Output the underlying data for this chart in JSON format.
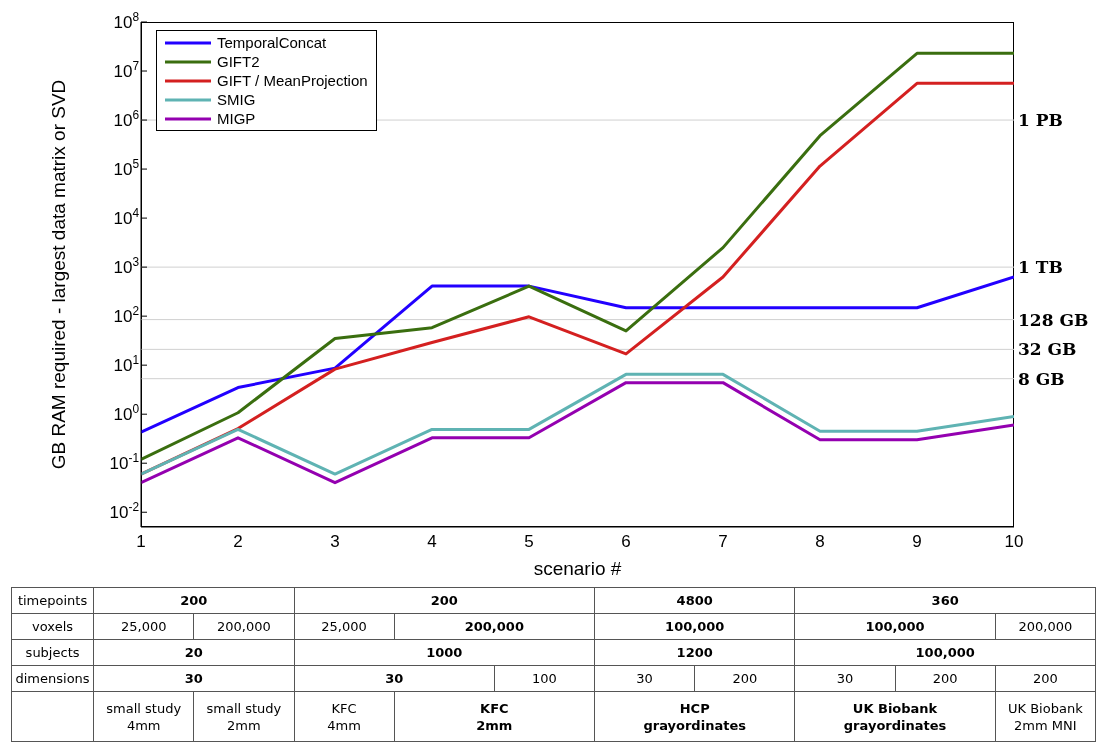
{
  "chart_data": {
    "type": "line",
    "xlabel": "scenario #",
    "ylabel": "GB RAM required - largest data matrix or SVD",
    "x": [
      1,
      2,
      3,
      4,
      5,
      6,
      7,
      8,
      9,
      10
    ],
    "xlim": [
      1,
      10
    ],
    "xticks": [
      1,
      2,
      3,
      4,
      5,
      6,
      7,
      8,
      9,
      10
    ],
    "ylim": [
      0.005,
      100000000
    ],
    "yticks": [
      {
        "value": 0.01,
        "label": "10$^{-2}$"
      },
      {
        "value": 0.1,
        "label": "10$^{-1}$"
      },
      {
        "value": 1,
        "label": "10$^{0}$"
      },
      {
        "value": 10,
        "label": "10$^{1}$"
      },
      {
        "value": 100,
        "label": "10$^{2}$"
      },
      {
        "value": 1000,
        "label": "10$^{3}$"
      },
      {
        "value": 10000,
        "label": "10$^{4}$"
      },
      {
        "value": 100000,
        "label": "10$^{5}$"
      },
      {
        "value": 1000000,
        "label": "10$^{6}$"
      },
      {
        "value": 10000000,
        "label": "10$^{7}$"
      },
      {
        "value": 100000000,
        "label": "10$^{8}$"
      }
    ],
    "ref_lines": [
      {
        "axis": "y",
        "value": 1000000,
        "label": "1 PB",
        "color": "#d0d0d0"
      },
      {
        "axis": "y",
        "value": 1000,
        "label": "1 TB",
        "color": "#d0d0d0"
      },
      {
        "axis": "y",
        "value": 85,
        "label": "128 GB",
        "color": "#d0d0d0"
      },
      {
        "axis": "y",
        "value": 21,
        "label": "32 GB",
        "color": "#d0d0d0"
      },
      {
        "axis": "y",
        "value": 5.3,
        "label": "8 GB",
        "color": "#d0d0d0"
      }
    ],
    "log": "y",
    "legend": "top left",
    "line_style": "solid",
    "series": [
      {
        "name": "TemporalConcat",
        "color": "#2200ff",
        "values": [
          0.43,
          3.5,
          8.7,
          410,
          410,
          148,
          148,
          148,
          148,
          630
        ]
      },
      {
        "name": "GIFT2",
        "color": "#3a6e0f",
        "values": [
          0.12,
          1.07,
          35,
          58,
          410,
          50,
          2500,
          480000,
          23000000,
          23000000
        ]
      },
      {
        "name": "GIFT / MeanProjection",
        "color": "#d42020",
        "values": [
          0.06,
          0.51,
          8.3,
          29,
          97,
          17,
          630,
          115000,
          5600000,
          5600000
        ]
      },
      {
        "name": "SMIG",
        "color": "#5fb3b3",
        "values": [
          0.06,
          0.49,
          0.06,
          0.49,
          0.49,
          6.5,
          6.5,
          0.45,
          0.45,
          0.9
        ]
      },
      {
        "name": "MIGP",
        "color": "#9400b0",
        "values": [
          0.04,
          0.33,
          0.04,
          0.33,
          0.33,
          4.4,
          4.4,
          0.3,
          0.3,
          0.6
        ]
      }
    ],
    "annotations": [
      "timepoints",
      "200",
      "200",
      "4800",
      "360",
      "voxels",
      "25,000",
      "200,000",
      "25,000",
      "200,000",
      "100,000",
      "100,000",
      "200,000",
      "subjects",
      "20",
      "1000",
      "1200",
      "100,000",
      "dimensions",
      "30",
      "30",
      "100",
      "30",
      "200",
      "30",
      "200",
      "200",
      "small study\n4mm",
      "small study\n2mm",
      "KFC\n4mm",
      "KFC\n2mm",
      "HCP\ngrayordinates",
      "UK Biobank\ngrayordinates",
      "UK Biobank\n2mm MNI"
    ]
  }
}
